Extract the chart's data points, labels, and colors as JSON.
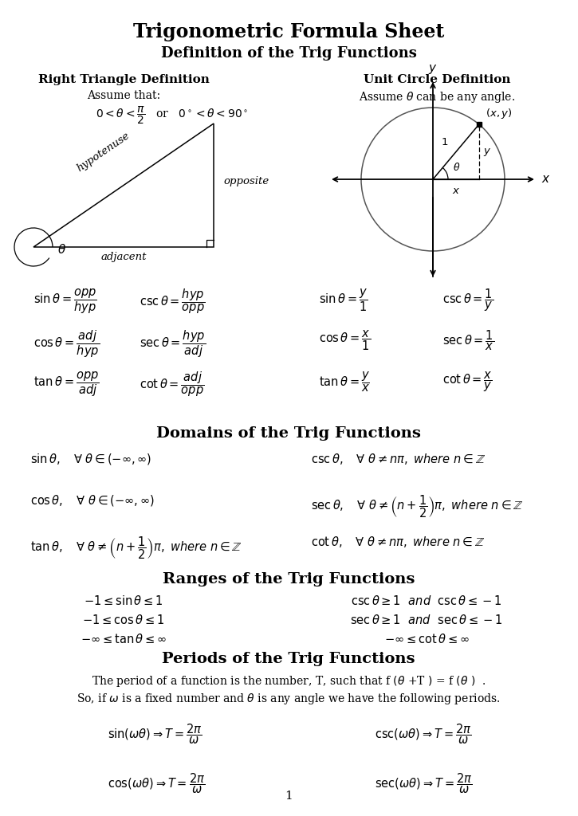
{
  "title": "Trigonometric Formula Sheet",
  "subtitle": "Definition of the Trig Functions",
  "bg_color": "#ffffff",
  "text_color": "#1a1a1a",
  "page_number": "1",
  "section_headers": {
    "right_tri": "Right Triangle Definition",
    "unit_circle": "Unit Circle Definition",
    "domains": "Domains of the Trig Functions",
    "ranges": "Ranges of the Trig Functions",
    "periods": "Periods of the Trig Functions"
  }
}
